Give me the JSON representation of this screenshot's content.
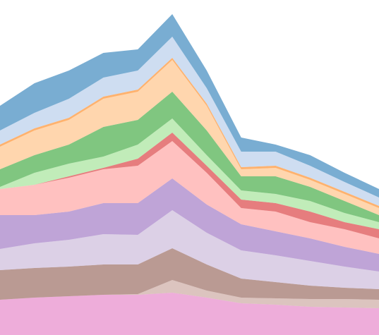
{
  "chart_data": {
    "type": "stackedarea",
    "x": [
      0,
      1,
      2,
      3,
      4,
      5,
      6,
      7,
      8,
      9,
      10,
      11
    ],
    "xlim": [
      0,
      11
    ],
    "ylim": [
      0,
      475
    ],
    "series": [
      {
        "color": "#e377c2",
        "values": [
          50,
          53,
          55,
          57,
          57,
          60,
          53,
          45,
          43,
          40,
          39,
          38
        ]
      },
      {
        "color": "#c49c94",
        "values": [
          0,
          0,
          0,
          0,
          1,
          18,
          10,
          8,
          9,
          11,
          12,
          12
        ]
      },
      {
        "color": "#8c564b",
        "values": [
          42,
          42,
          42,
          43,
          42,
          45,
          37,
          27,
          23,
          19,
          16,
          15
        ]
      },
      {
        "color": "#c5b0d5",
        "values": [
          30,
          35,
          38,
          43,
          42,
          54,
          45,
          40,
          38,
          35,
          30,
          25
        ]
      },
      {
        "color": "#9467bd",
        "values": [
          48,
          40,
          40,
          44,
          45,
          45,
          40,
          37,
          34,
          32,
          28,
          25
        ]
      },
      {
        "color": "#ff9896",
        "values": [
          37,
          43,
          48,
          48,
          53,
          53,
          45,
          23,
          28,
          23,
          25,
          22
        ]
      },
      {
        "color": "#d62728",
        "values": [
          0,
          0,
          2,
          2,
          10,
          12,
          10,
          12,
          12,
          15,
          10,
          13
        ]
      },
      {
        "color": "#98df8a",
        "values": [
          3,
          17,
          18,
          16,
          20,
          20,
          15,
          13,
          13,
          15,
          13,
          10
        ]
      },
      {
        "color": "#2ca02c",
        "values": [
          25,
          25,
          27,
          42,
          35,
          38,
          35,
          20,
          25,
          20,
          17,
          10
        ]
      },
      {
        "color": "#ffbb78",
        "values": [
          32,
          35,
          35,
          40,
          40,
          45,
          35,
          10,
          12,
          10,
          10,
          10
        ]
      },
      {
        "color": "#ff7f0e",
        "values": [
          3,
          3,
          3,
          3,
          3,
          3,
          3,
          3,
          3,
          3,
          3,
          3
        ]
      },
      {
        "color": "#aec7e8",
        "values": [
          20,
          22,
          27,
          27,
          27,
          30,
          22,
          22,
          20,
          17,
          14,
          12
        ]
      },
      {
        "color": "#1f77b4",
        "values": [
          35,
          42,
          40,
          35,
          30,
          32,
          25,
          20,
          10,
          15,
          13,
          12
        ]
      }
    ]
  }
}
